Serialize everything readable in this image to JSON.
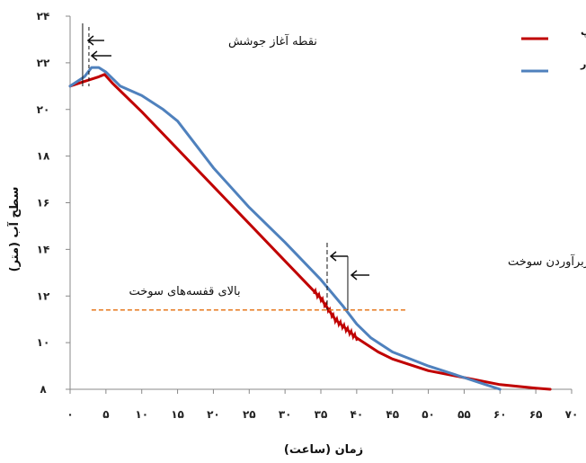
{
  "chart_data": {
    "type": "line",
    "xlabel": "زمان (ساعت)",
    "ylabel": "سطح آب (متر)",
    "xlim": [
      0,
      70
    ],
    "ylim": [
      8,
      24
    ],
    "x_ticks": [
      0,
      5,
      10,
      15,
      20,
      25,
      30,
      35,
      40,
      45,
      50,
      55,
      60,
      65,
      70
    ],
    "x_tick_labels": [
      "۰",
      "۵",
      "۱۰",
      "۱۵",
      "۲۰",
      "۲۵",
      "۳۰",
      "۳۵",
      "۴۰",
      "۴۵",
      "۵۰",
      "۵۵",
      "۶۰",
      "۶۵",
      "۷۰"
    ],
    "y_ticks": [
      8,
      10,
      12,
      14,
      16,
      18,
      20,
      22,
      24
    ],
    "y_tick_labels": [
      "۸",
      "۱۰",
      "۱۲",
      "۱۴",
      "۱۶",
      "۱۸",
      "۲۰",
      "۲۲",
      "۲۴"
    ],
    "grid": false,
    "legend_position": "top-right",
    "series": [
      {
        "name": "ریلپ",
        "color": "#c00000",
        "x": [
          0,
          2,
          4,
          4.8,
          6,
          10,
          15,
          20,
          25,
          30,
          35,
          37,
          40,
          43,
          45,
          50,
          55,
          60,
          65,
          67
        ],
        "y": [
          21,
          21.2,
          21.4,
          21.5,
          21.1,
          19.9,
          18.3,
          16.7,
          15.1,
          13.5,
          11.9,
          11,
          10.2,
          9.6,
          9.3,
          8.8,
          8.5,
          8.2,
          8.05,
          8
        ]
      },
      {
        "name": "ملکور",
        "color": "#4f81bd",
        "x": [
          0,
          2,
          3,
          4,
          5,
          7,
          10,
          13,
          15,
          20,
          25,
          30,
          35,
          38,
          40,
          42,
          45,
          50,
          55,
          58,
          60
        ],
        "y": [
          21,
          21.4,
          21.8,
          21.8,
          21.6,
          21,
          20.6,
          20,
          19.5,
          17.5,
          15.8,
          14.3,
          12.7,
          11.6,
          10.8,
          10.2,
          9.6,
          9,
          8.5,
          8.2,
          8
        ]
      }
    ],
    "annotations": [
      {
        "text": "نقطه آغاز جوشش",
        "x": 2
      },
      {
        "text": "نقطه آغاز سربرآوردن سوخت",
        "x": 36
      },
      {
        "text": "بالای قفسه‌های سوخت",
        "y": 11.4,
        "color": "#e46c0a"
      }
    ]
  }
}
